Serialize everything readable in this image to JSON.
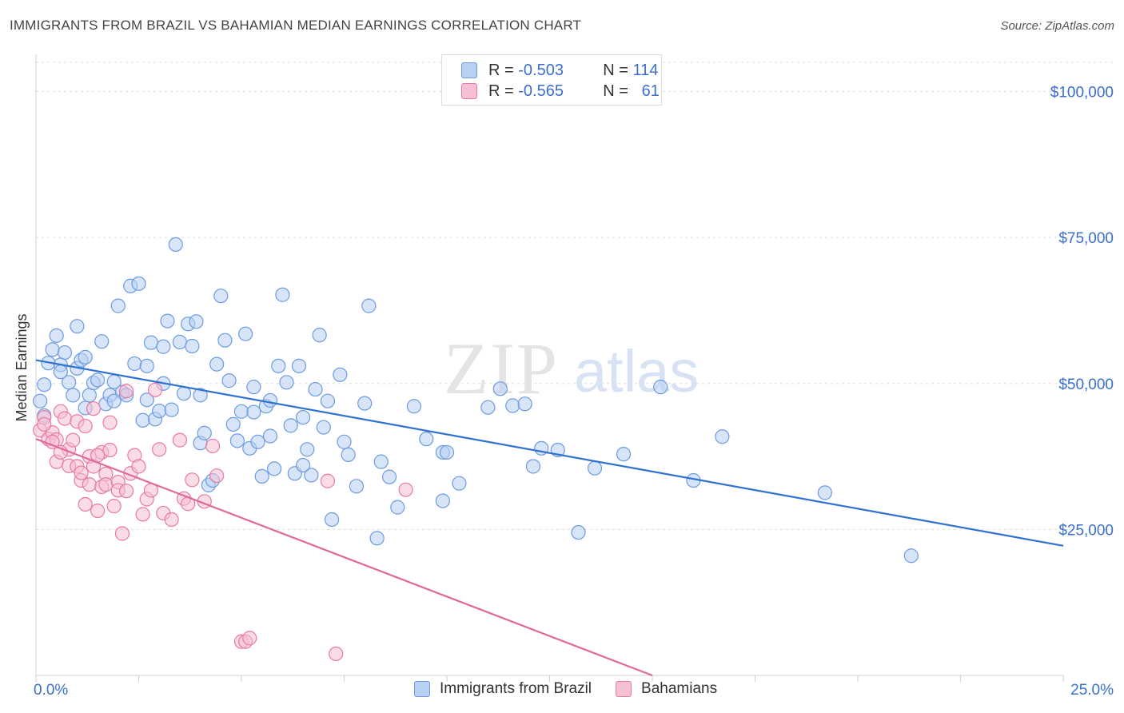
{
  "title": "IMMIGRANTS FROM BRAZIL VS BAHAMIAN MEDIAN EARNINGS CORRELATION CHART",
  "source": "Source: ZipAtlas.com",
  "watermark": {
    "zip": "ZIP",
    "atlas": "atlas"
  },
  "legend": {
    "row1": {
      "r_label": "R =",
      "r_value": "-0.503",
      "n_label": "N =",
      "n_value": "114"
    },
    "row2": {
      "r_label": "R =",
      "r_value": "-0.565",
      "n_label": "N =",
      "n_value": "61"
    }
  },
  "colors": {
    "blue": "#6d9be0",
    "blue_fill": "#b8d0f3",
    "pink": "#e87aa3",
    "pink_fill": "#f6bfd3",
    "blue_line": "#2f72d0",
    "pink_line": "#e0699a",
    "axis_text": "#3a6fcf"
  },
  "chart_data": {
    "type": "scatter",
    "title": "IMMIGRANTS FROM BRAZIL VS BAHAMIAN MEDIAN EARNINGS CORRELATION CHART",
    "xlabel": "",
    "ylabel": "Median Earnings",
    "xlim": [
      0,
      25
    ],
    "ylim": [
      0,
      105000
    ],
    "x_tick_labels": [
      "0.0%",
      "25.0%"
    ],
    "y_ticks": [
      25000,
      50000,
      75000,
      100000
    ],
    "y_tick_labels": [
      "$25,000",
      "$50,000",
      "$75,000",
      "$100,000"
    ],
    "grid": true,
    "legend_position": "bottom",
    "series": [
      {
        "name": "Immigrants from Brazil",
        "trend": {
          "x": [
            0,
            25
          ],
          "y": [
            54000,
            22200
          ]
        },
        "points": [
          [
            0.1,
            47000
          ],
          [
            0.2,
            49800
          ],
          [
            0.3,
            53500
          ],
          [
            0.4,
            55800
          ],
          [
            0.5,
            58200
          ],
          [
            0.6,
            53200
          ],
          [
            0.7,
            55300
          ],
          [
            0.8,
            50200
          ],
          [
            0.9,
            48000
          ],
          [
            1.0,
            59800
          ],
          [
            1.0,
            52600
          ],
          [
            1.1,
            54000
          ],
          [
            1.2,
            54500
          ],
          [
            1.2,
            45800
          ],
          [
            1.3,
            48000
          ],
          [
            1.4,
            50100
          ],
          [
            1.5,
            50600
          ],
          [
            1.6,
            57200
          ],
          [
            1.7,
            46500
          ],
          [
            1.8,
            48000
          ],
          [
            1.9,
            50300
          ],
          [
            2.0,
            63300
          ],
          [
            2.1,
            48500
          ],
          [
            2.2,
            48000
          ],
          [
            2.3,
            66700
          ],
          [
            2.4,
            53400
          ],
          [
            2.5,
            67100
          ],
          [
            2.6,
            43700
          ],
          [
            2.7,
            53000
          ],
          [
            2.8,
            57000
          ],
          [
            2.9,
            43900
          ],
          [
            3.0,
            45300
          ],
          [
            3.1,
            56300
          ],
          [
            3.2,
            60700
          ],
          [
            3.3,
            45500
          ],
          [
            3.4,
            73800
          ],
          [
            3.5,
            57100
          ],
          [
            3.6,
            48300
          ],
          [
            3.7,
            60200
          ],
          [
            3.8,
            56400
          ],
          [
            3.9,
            60600
          ],
          [
            4.0,
            39800
          ],
          [
            4.1,
            41500
          ],
          [
            4.2,
            32600
          ],
          [
            4.3,
            33400
          ],
          [
            4.4,
            53300
          ],
          [
            4.5,
            65000
          ],
          [
            4.6,
            57400
          ],
          [
            4.7,
            50500
          ],
          [
            4.8,
            43000
          ],
          [
            4.9,
            40200
          ],
          [
            5.0,
            45200
          ],
          [
            5.1,
            58500
          ],
          [
            5.2,
            38900
          ],
          [
            5.3,
            45100
          ],
          [
            5.4,
            40000
          ],
          [
            5.5,
            34100
          ],
          [
            5.6,
            46100
          ],
          [
            5.7,
            41000
          ],
          [
            5.8,
            35400
          ],
          [
            5.9,
            53000
          ],
          [
            6.0,
            65200
          ],
          [
            6.1,
            50200
          ],
          [
            6.2,
            42800
          ],
          [
            6.3,
            34600
          ],
          [
            6.4,
            53000
          ],
          [
            6.5,
            44200
          ],
          [
            6.6,
            38700
          ],
          [
            6.7,
            34300
          ],
          [
            6.8,
            49000
          ],
          [
            6.9,
            58300
          ],
          [
            7.0,
            42500
          ],
          [
            7.2,
            26700
          ],
          [
            7.4,
            51500
          ],
          [
            7.5,
            40000
          ],
          [
            7.6,
            37800
          ],
          [
            7.8,
            32400
          ],
          [
            8.0,
            46600
          ],
          [
            8.1,
            63300
          ],
          [
            8.3,
            23500
          ],
          [
            8.6,
            34000
          ],
          [
            8.8,
            28800
          ],
          [
            9.2,
            46100
          ],
          [
            9.9,
            29900
          ],
          [
            9.9,
            38200
          ],
          [
            10.0,
            38200
          ],
          [
            10.3,
            32900
          ],
          [
            11.0,
            45900
          ],
          [
            11.3,
            49100
          ],
          [
            11.6,
            46200
          ],
          [
            11.9,
            46500
          ],
          [
            12.1,
            35800
          ],
          [
            12.3,
            38900
          ],
          [
            12.7,
            38600
          ],
          [
            13.2,
            24500
          ],
          [
            13.6,
            35500
          ],
          [
            14.3,
            37900
          ],
          [
            15.2,
            49400
          ],
          [
            16.0,
            33400
          ],
          [
            16.7,
            40900
          ],
          [
            19.2,
            31300
          ],
          [
            21.3,
            20500
          ],
          [
            0.2,
            44500
          ],
          [
            0.6,
            52000
          ],
          [
            1.9,
            47000
          ],
          [
            2.7,
            47200
          ],
          [
            3.1,
            50000
          ],
          [
            4.0,
            48000
          ],
          [
            5.3,
            49400
          ],
          [
            5.7,
            47100
          ],
          [
            6.5,
            36000
          ],
          [
            7.1,
            47000
          ],
          [
            8.4,
            36600
          ],
          [
            9.5,
            40500
          ]
        ]
      },
      {
        "name": "Bahamians",
        "trend": {
          "x": [
            0,
            15
          ],
          "y": [
            40500,
            0
          ]
        },
        "points": [
          [
            0.1,
            42000
          ],
          [
            0.2,
            44200
          ],
          [
            0.3,
            40500
          ],
          [
            0.4,
            41600
          ],
          [
            0.5,
            36600
          ],
          [
            0.5,
            40400
          ],
          [
            0.6,
            45200
          ],
          [
            0.7,
            44000
          ],
          [
            0.8,
            38700
          ],
          [
            0.8,
            35900
          ],
          [
            0.9,
            40300
          ],
          [
            1.0,
            35800
          ],
          [
            1.0,
            43500
          ],
          [
            1.1,
            33400
          ],
          [
            1.1,
            34700
          ],
          [
            1.2,
            42700
          ],
          [
            1.2,
            29300
          ],
          [
            1.3,
            32700
          ],
          [
            1.3,
            37500
          ],
          [
            1.4,
            35800
          ],
          [
            1.4,
            45700
          ],
          [
            1.5,
            28200
          ],
          [
            1.6,
            32300
          ],
          [
            1.6,
            38200
          ],
          [
            1.7,
            34500
          ],
          [
            1.7,
            32700
          ],
          [
            1.8,
            38600
          ],
          [
            1.8,
            43300
          ],
          [
            1.9,
            29000
          ],
          [
            2.0,
            33100
          ],
          [
            2.0,
            31700
          ],
          [
            2.1,
            24300
          ],
          [
            2.2,
            31600
          ],
          [
            2.3,
            34600
          ],
          [
            2.4,
            37700
          ],
          [
            2.5,
            35800
          ],
          [
            2.6,
            27600
          ],
          [
            2.7,
            30200
          ],
          [
            2.8,
            31700
          ],
          [
            2.9,
            48900
          ],
          [
            3.0,
            38700
          ],
          [
            3.1,
            27800
          ],
          [
            3.3,
            26700
          ],
          [
            3.5,
            40300
          ],
          [
            3.6,
            30300
          ],
          [
            3.7,
            29400
          ],
          [
            3.8,
            33500
          ],
          [
            4.1,
            29800
          ],
          [
            4.3,
            39300
          ],
          [
            4.4,
            34200
          ],
          [
            5.0,
            5800
          ],
          [
            5.1,
            5800
          ],
          [
            5.2,
            6400
          ],
          [
            7.1,
            33300
          ],
          [
            7.3,
            3700
          ],
          [
            9.0,
            31800
          ],
          [
            0.2,
            43000
          ],
          [
            0.4,
            40000
          ],
          [
            0.6,
            38200
          ],
          [
            1.5,
            37700
          ],
          [
            2.2,
            48700
          ]
        ]
      }
    ]
  }
}
